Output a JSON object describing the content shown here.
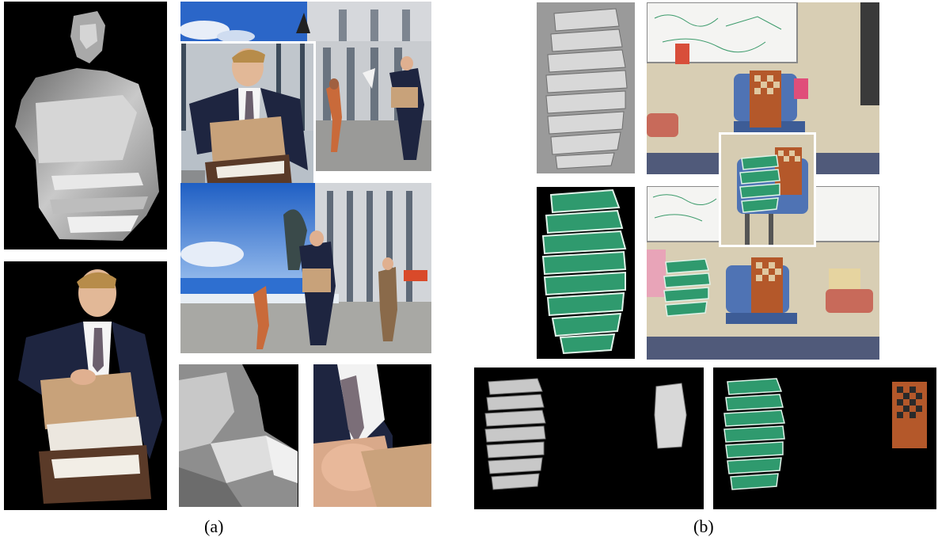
{
  "captions": {
    "a": "(a)",
    "b": "(b)"
  },
  "colors": {
    "background": "#ffffff",
    "panel_black": "#000000",
    "sky_blue": "#2b66c8",
    "building_gray": "#9aa0a6",
    "suit_navy": "#1c2340",
    "briefcase_tan": "#c8a27a",
    "lantern_green": "#2f9a6e",
    "chessboard_orange": "#b4582a",
    "chair_blue": "#4f73b4",
    "wall_beige": "#d9cfb5"
  }
}
